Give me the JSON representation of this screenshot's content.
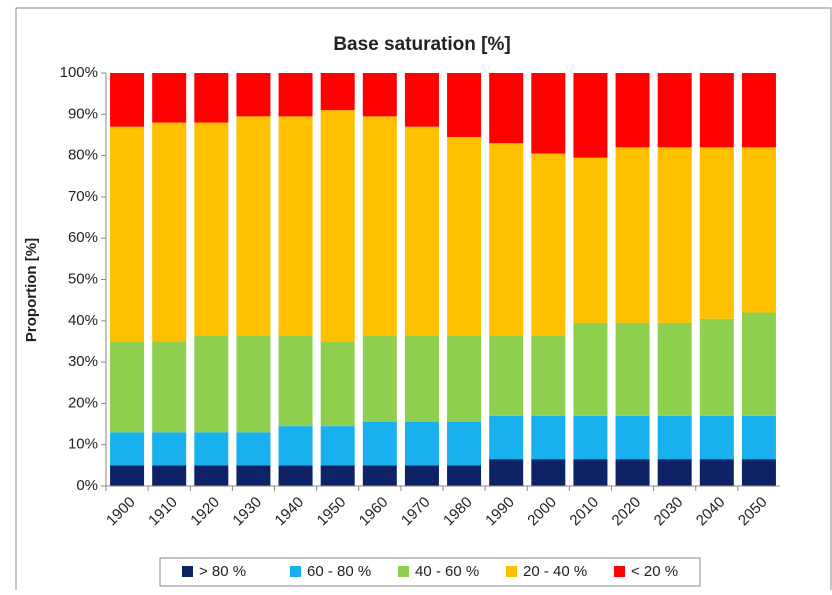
{
  "chart_data": {
    "type": "stacked_bar",
    "title": "Base saturation [%]",
    "y_label": "Proportion [%]",
    "categories": [
      "1900",
      "1910",
      "1920",
      "1930",
      "1940",
      "1950",
      "1960",
      "1970",
      "1980",
      "1990",
      "2000",
      "2010",
      "2020",
      "2030",
      "2040",
      "2050"
    ],
    "series": [
      {
        "name": "> 80 %",
        "color": "#0d2366",
        "values": [
          5,
          5,
          5,
          5,
          5,
          5,
          5,
          5,
          5,
          6.5,
          6.5,
          6.5,
          6.5,
          6.5,
          6.5,
          6.5
        ]
      },
      {
        "name": "60 - 80 %",
        "color": "#19b0f0",
        "values": [
          8,
          8,
          8,
          8,
          9.5,
          9.5,
          10.5,
          10.5,
          10.5,
          10.5,
          10.5,
          10.5,
          10.5,
          10.5,
          10.5,
          10.5
        ]
      },
      {
        "name": "40 - 60 %",
        "color": "#8fcf4f",
        "values": [
          22,
          22,
          23.5,
          23.5,
          22,
          20.5,
          21,
          21,
          21,
          19.5,
          19.5,
          22.5,
          22.5,
          22.5,
          23.5,
          25
        ]
      },
      {
        "name": "20 - 40 %",
        "color": "#ffc000",
        "values": [
          52,
          53,
          51.5,
          53,
          53,
          56,
          53,
          50.5,
          48,
          46.5,
          44,
          40,
          42.5,
          42.5,
          41.5,
          40
        ]
      },
      {
        "name": "< 20 %",
        "color": "#ff0000",
        "values": [
          13,
          12,
          12,
          10.5,
          10.5,
          9,
          10.5,
          13,
          15.5,
          17,
          19.5,
          20.5,
          18,
          18,
          18,
          18
        ]
      }
    ],
    "ylim": [
      0,
      100
    ],
    "yticks": [
      {
        "value": 0,
        "label": "0%"
      },
      {
        "value": 10,
        "label": "10%"
      },
      {
        "value": 20,
        "label": "20%"
      },
      {
        "value": 30,
        "label": "30%"
      },
      {
        "value": 40,
        "label": "40%"
      },
      {
        "value": 50,
        "label": "50%"
      },
      {
        "value": 60,
        "label": "60%"
      },
      {
        "value": 70,
        "label": "70%"
      },
      {
        "value": 80,
        "label": "80%"
      },
      {
        "value": 90,
        "label": "90%"
      },
      {
        "value": 100,
        "label": "100%"
      }
    ],
    "legend": "bottom"
  }
}
